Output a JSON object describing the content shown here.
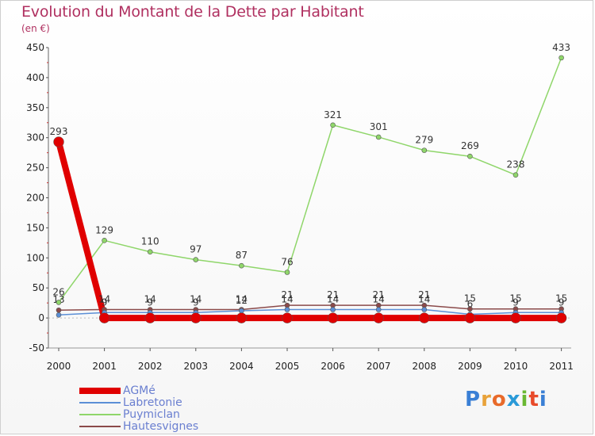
{
  "title": "Evolution du Montant de la Dette par Habitant",
  "subtitle": "(en €)",
  "logo_text": "Proxiti",
  "logo_colors": [
    "#3a7fd5",
    "#e8a23a",
    "#e86a2a",
    "#2a9ad8",
    "#6ab833",
    "#e84a2a",
    "#3a7fd5"
  ],
  "chart_data": {
    "type": "line",
    "title": "Evolution du Montant de la Dette par Habitant",
    "ylabel": "(en €)",
    "xlabel": "",
    "ylim": [
      -50,
      450
    ],
    "yticks": [
      -50,
      0,
      50,
      100,
      150,
      200,
      250,
      300,
      350,
      400,
      450
    ],
    "x": [
      "2000",
      "2001",
      "2002",
      "2003",
      "2004",
      "2005",
      "2006",
      "2007",
      "2008",
      "2009",
      "2010",
      "2011"
    ],
    "series": [
      {
        "name": "Hautesvignes",
        "color": "#8b4a4a",
        "values": [
          13,
          14,
          14,
          14,
          14,
          21,
          21,
          21,
          21,
          15,
          15,
          15
        ],
        "labels": [
          "13",
          "14",
          "14",
          "14",
          "14",
          "21",
          "21",
          "21",
          "21",
          "15",
          "15",
          "15"
        ]
      },
      {
        "name": "Labretonie",
        "color": "#5b8fd6",
        "values": [
          5,
          9,
          9,
          9,
          12,
          14,
          14,
          14,
          14,
          6,
          9,
          9
        ],
        "labels": [
          "",
          "9",
          "9",
          "9",
          "12",
          "14",
          "14",
          "14",
          "14",
          "6",
          "9",
          "9"
        ]
      },
      {
        "name": "Puymiclan",
        "color": "#8fd66a",
        "values": [
          26,
          129,
          110,
          97,
          87,
          76,
          321,
          301,
          279,
          269,
          238,
          433
        ],
        "labels": [
          "26",
          "129",
          "110",
          "97",
          "87",
          "76",
          "321",
          "301",
          "279",
          "269",
          "238",
          "433"
        ]
      },
      {
        "name": "AGMé",
        "color": "#e00000",
        "values": [
          293,
          0,
          0,
          0,
          0,
          0,
          0,
          0,
          0,
          0,
          0,
          0
        ],
        "labels": [
          "293",
          "",
          "",
          "",
          "",
          "",
          "",
          "",
          "",
          "",
          "",
          ""
        ]
      }
    ],
    "legend": [
      {
        "name": "AGMé",
        "color": "#e00000"
      },
      {
        "name": "Labretonie",
        "color": "#5b8fd6"
      },
      {
        "name": "Puymiclan",
        "color": "#8fd66a"
      },
      {
        "name": "Hautesvignes",
        "color": "#8b4a4a"
      }
    ]
  }
}
